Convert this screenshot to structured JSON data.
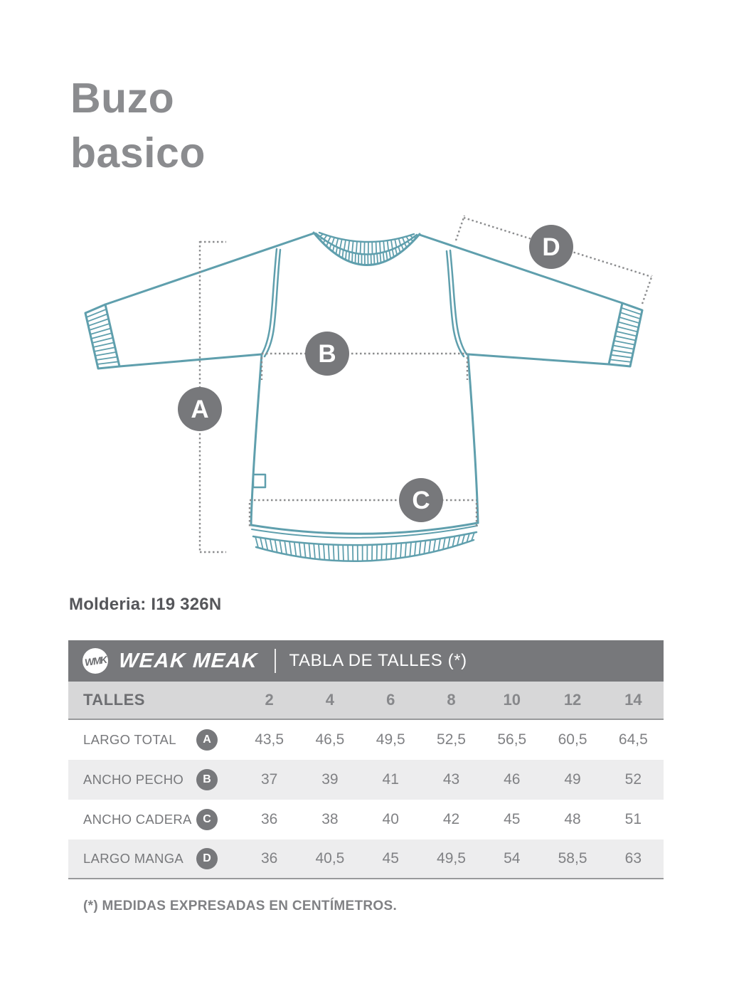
{
  "title": {
    "line1": "Buzo",
    "line2": "basico"
  },
  "molderia": "Molderia: I19 326N",
  "diagram": {
    "markers": [
      {
        "label": "A"
      },
      {
        "label": "B"
      },
      {
        "label": "C"
      },
      {
        "label": "D"
      }
    ]
  },
  "header": {
    "logo": "WMK",
    "brand": "WEAK MEAK",
    "title": "TABLA DE TALLES (*)"
  },
  "table": {
    "size_header_label": "TALLES",
    "sizes": [
      "2",
      "4",
      "6",
      "8",
      "10",
      "12",
      "14"
    ],
    "rows": [
      {
        "label": "LARGO TOTAL",
        "marker": "A",
        "values": [
          "43,5",
          "46,5",
          "49,5",
          "52,5",
          "56,5",
          "60,5",
          "64,5"
        ]
      },
      {
        "label": "ANCHO PECHO",
        "marker": "B",
        "values": [
          "37",
          "39",
          "41",
          "43",
          "46",
          "49",
          "52"
        ]
      },
      {
        "label": "ANCHO CADERA",
        "marker": "C",
        "values": [
          "36",
          "38",
          "40",
          "42",
          "45",
          "48",
          "51"
        ]
      },
      {
        "label": "LARGO MANGA",
        "marker": "D",
        "values": [
          "36",
          "40,5",
          "45",
          "49,5",
          "54",
          "58,5",
          "63"
        ]
      }
    ]
  },
  "footnote": "(*) MEDIDAS EXPRESADAS EN CENTÍMETROS.",
  "colors": {
    "accent_teal": "#5f9fad",
    "badge_gray": "#77787b"
  }
}
